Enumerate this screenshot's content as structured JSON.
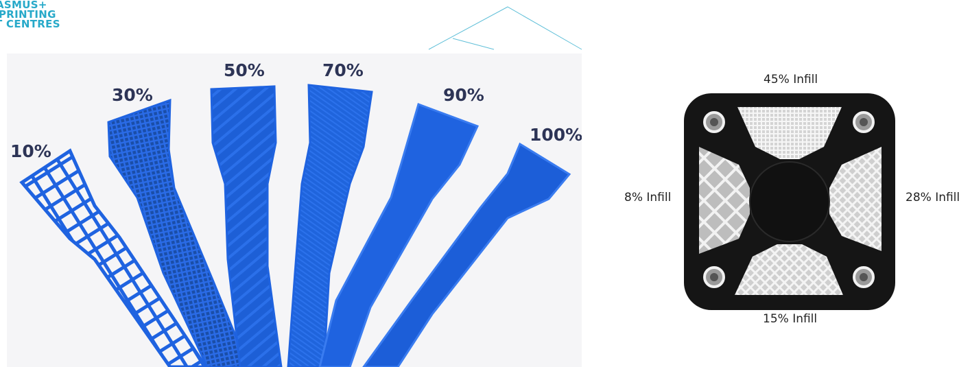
{
  "logo": {
    "lines": [
      "ASMUS+",
      "PRINTING",
      "T CENTRES"
    ],
    "color": "#27a9c9"
  },
  "left_photo": {
    "labels": [
      "10%",
      "30%",
      "50%",
      "70%",
      "90%",
      "100%"
    ],
    "label_color": "#2d3456",
    "strip_color": "#1f63e0",
    "background": "#f5f5f7"
  },
  "right_photo": {
    "labels": {
      "top": "45% Infill",
      "left": "8% Infill",
      "right": "28% Infill",
      "bottom": "15% Infill"
    },
    "frame_color": "#151515",
    "infill_color": "#f2f2f2"
  }
}
